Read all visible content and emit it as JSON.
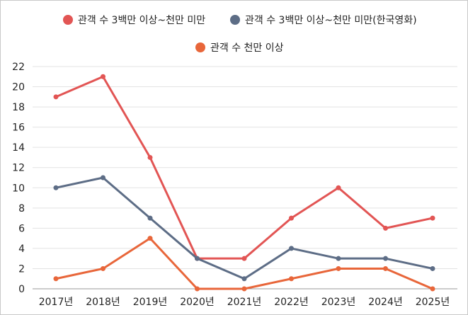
{
  "chart_data": {
    "type": "line",
    "categories": [
      "2017년",
      "2018년",
      "2019년",
      "2020년",
      "2021년",
      "2022년",
      "2023년",
      "2024년",
      "2025년"
    ],
    "series": [
      {
        "name": "관객 수 3백만 이상~천만 미만",
        "color": "#e25554",
        "values": [
          19,
          21,
          13,
          3,
          3,
          7,
          10,
          6,
          7
        ]
      },
      {
        "name": "관객 수 3백만 이상~천만 미만(한국영화)",
        "color": "#5d6d86",
        "values": [
          10,
          11,
          7,
          3,
          1,
          4,
          3,
          3,
          2
        ]
      },
      {
        "name": "관객 수 천만 이상",
        "color": "#e8663a",
        "values": [
          1,
          2,
          5,
          0,
          0,
          1,
          2,
          2,
          0
        ]
      }
    ],
    "ylim": [
      0,
      22
    ],
    "yticks": [
      0,
      2,
      4,
      6,
      8,
      10,
      12,
      14,
      16,
      18,
      20,
      22
    ],
    "grid": "horizontal",
    "legend_position": "top"
  }
}
